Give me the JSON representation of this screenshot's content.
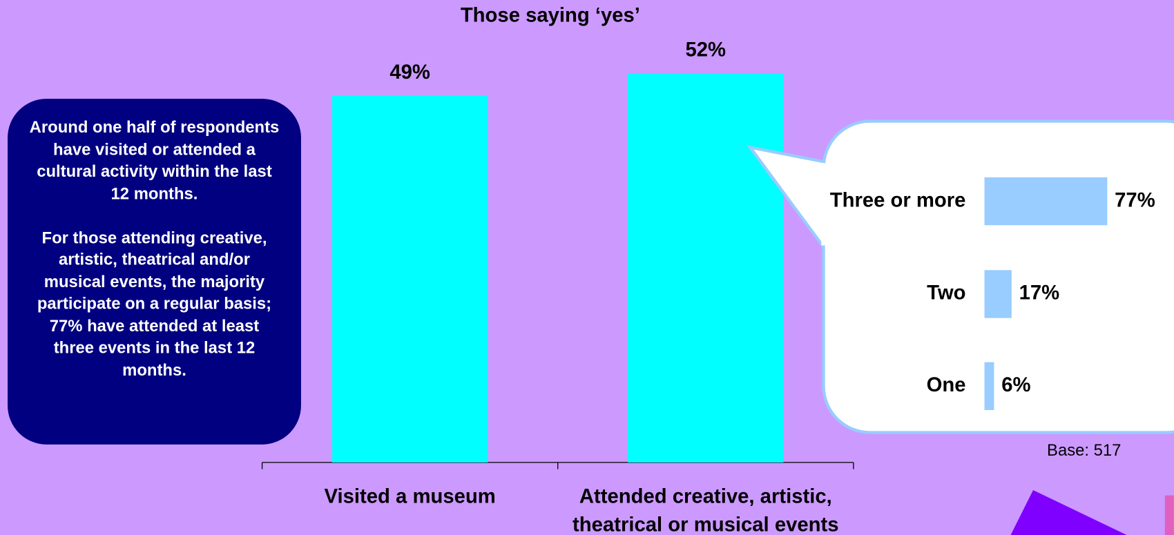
{
  "chart_data": [
    {
      "type": "bar",
      "title": "Those saying ‘yes’",
      "categories": [
        "Visited a museum",
        "Attended creative, artistic, theatrical or musical events"
      ],
      "values": [
        49,
        52
      ],
      "value_labels": [
        "49%",
        "52%"
      ],
      "color": "#00ffff"
    },
    {
      "type": "hbar",
      "categories": [
        "Three or more",
        "Two",
        "One"
      ],
      "values": [
        77,
        17,
        6
      ],
      "value_labels": [
        "77%",
        "17%",
        "6%"
      ],
      "color": "#99ccff"
    }
  ],
  "textbox": {
    "paragraphs": [
      "Around one half of respondents have visited or attended a cultural activity within the last 12 months.",
      "For those attending creative, artistic, theatrical and/or musical events, the majority participate on a regular basis; 77% have attended at least three events in the last 12 months."
    ]
  },
  "note": "Base: 517"
}
